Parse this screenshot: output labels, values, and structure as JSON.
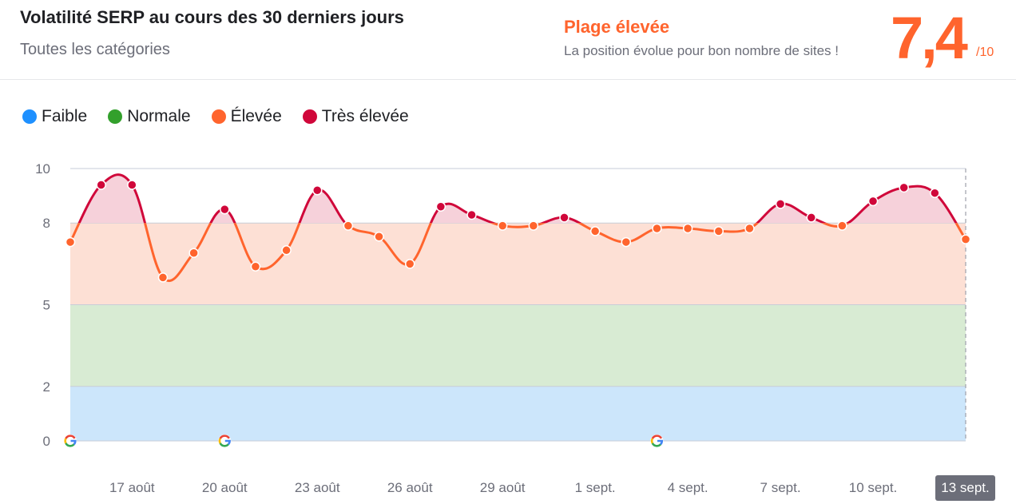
{
  "header": {
    "title": "Volatilité SERP au cours des 30 derniers jours",
    "subtitle": "Toutes les catégories",
    "range_label": "Plage élevée",
    "range_desc": "La position évolue pour bon nombre de sites !",
    "score": "7,4",
    "score_max": "/10"
  },
  "colors": {
    "accent": "#ff642d",
    "faible": "#1e90ff",
    "normale": "#33a02c",
    "elevee": "#ff642d",
    "tres_elevee": "#d0073a",
    "band_faible": "#cce6fb",
    "band_normale": "#d8ebd3",
    "band_elevee": "#fde0d5",
    "band_tres_elevee": "#f6d1da"
  },
  "legend": [
    {
      "label": "Faible",
      "color": "#1e90ff"
    },
    {
      "label": "Normale",
      "color": "#33a02c"
    },
    {
      "label": "Élevée",
      "color": "#ff642d"
    },
    {
      "label": "Très élevée",
      "color": "#d0073a"
    }
  ],
  "chart_data": {
    "type": "line",
    "x": [
      "15 août",
      "16 août",
      "17 août",
      "18 août",
      "19 août",
      "20 août",
      "21 août",
      "22 août",
      "23 août",
      "24 août",
      "25 août",
      "26 août",
      "27 août",
      "28 août",
      "29 août",
      "30 août",
      "31 août",
      "1 sept.",
      "2 sept.",
      "3 sept.",
      "4 sept.",
      "5 sept.",
      "6 sept.",
      "7 sept.",
      "8 sept.",
      "9 sept.",
      "10 sept.",
      "11 sept.",
      "12 sept.",
      "13 sept."
    ],
    "series": [
      {
        "values": [
          7.3,
          9.4,
          9.4,
          6.0,
          6.9,
          8.5,
          6.4,
          7.0,
          9.2,
          7.9,
          7.5,
          6.5,
          8.6,
          8.3,
          7.9,
          7.9,
          8.2,
          7.7,
          7.3,
          7.8,
          7.8,
          7.7,
          7.8,
          8.7,
          8.2,
          7.9,
          8.8,
          9.3,
          9.1,
          7.4
        ]
      }
    ],
    "bands": [
      {
        "label": "Faible",
        "from": 0,
        "to": 2
      },
      {
        "label": "Normale",
        "from": 2,
        "to": 5
      },
      {
        "label": "Élevée",
        "from": 5,
        "to": 8
      },
      {
        "label": "Très élevée",
        "from": 8,
        "to": 10
      }
    ],
    "yticks": [
      "0",
      "2",
      "5",
      "8",
      "10"
    ],
    "ylim": [
      0,
      10
    ],
    "xtick_labels": [
      "17 août",
      "20 août",
      "23 août",
      "26 août",
      "29 août",
      "1 sept.",
      "4 sept.",
      "7 sept.",
      "10 sept."
    ],
    "highlighted_date": "13 sept.",
    "google_update_markers": [
      "15 août",
      "20 août",
      "3 sept."
    ],
    "grid": true
  }
}
